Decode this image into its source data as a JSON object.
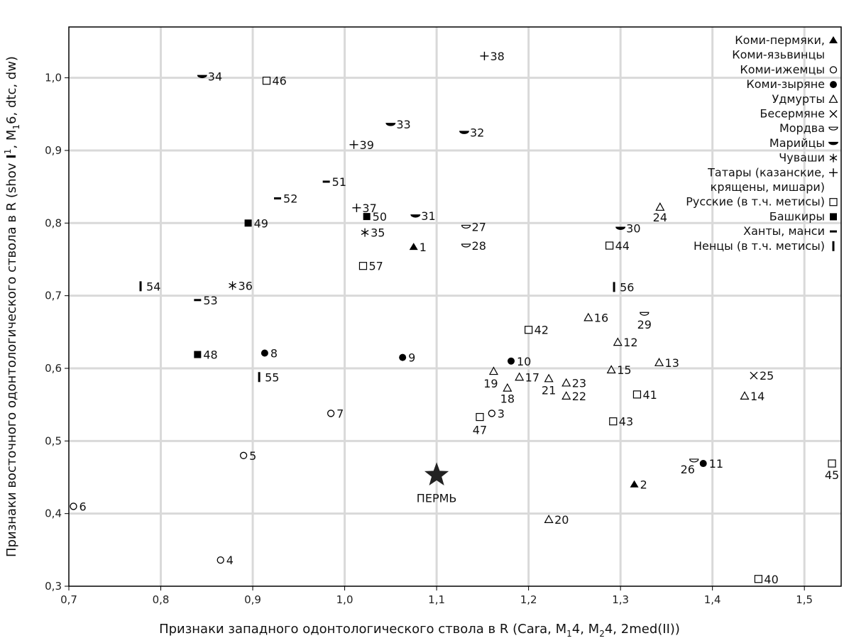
{
  "chart_data": {
    "type": "scatter",
    "xlabel": "Признаки западного одонтологического ствола в R (Cara, M₁4, M₂4, 2med(II))",
    "ylabel": "Признаки восточного одонтологического ствола в R (shov I¹, M₁6, dtc, dw)",
    "xlim": [
      0.7,
      1.54
    ],
    "ylim": [
      0.3,
      1.07
    ],
    "xticks": [
      "0,7",
      "0,8",
      "0,9",
      "1,0",
      "1,1",
      "1,2",
      "1,3",
      "1,4",
      "1,5"
    ],
    "xtick_values": [
      0.7,
      0.8,
      0.9,
      1.0,
      1.1,
      1.2,
      1.3,
      1.4,
      1.5
    ],
    "yticks": [
      "0,3",
      "0,4",
      "0,5",
      "0,6",
      "0,7",
      "0,8",
      "0,9",
      "1,0"
    ],
    "ytick_values": [
      0.3,
      0.4,
      0.5,
      0.6,
      0.7,
      0.8,
      0.9,
      1.0
    ],
    "grid": true,
    "legend_position": "top-right",
    "legend": [
      {
        "label": "Коми-пермяки,",
        "marker": "half-triangle-up"
      },
      {
        "label": "Коми-язьвинцы",
        "marker": "none"
      },
      {
        "label": "Коми-ижемцы",
        "marker": "circle-open"
      },
      {
        "label": "Коми-зыряне",
        "marker": "circle-filled"
      },
      {
        "label": "Удмурты",
        "marker": "triangle-open"
      },
      {
        "label": "Бесермяне",
        "marker": "cross"
      },
      {
        "label": "Мордва",
        "marker": "half-circle-down"
      },
      {
        "label": "Марийцы",
        "marker": "half-ellipse-filled"
      },
      {
        "label": "Чуваши",
        "marker": "asterisk"
      },
      {
        "label": "Татары (казанские,",
        "marker": "plus"
      },
      {
        "label": "крящены, мишари)",
        "marker": "none"
      },
      {
        "label": "Русские (в т.ч. метисы)",
        "marker": "square-open"
      },
      {
        "label": "Башкиры",
        "marker": "square-filled"
      },
      {
        "label": "Ханты, манси",
        "marker": "dash"
      },
      {
        "label": "Ненцы (в т.ч. метисы)",
        "marker": "bar"
      }
    ],
    "points": [
      {
        "label": "1",
        "x": 1.075,
        "y": 0.767,
        "marker": "half-triangle-up"
      },
      {
        "label": "2",
        "x": 1.315,
        "y": 0.44,
        "marker": "half-triangle-up"
      },
      {
        "label": "3",
        "x": 1.16,
        "y": 0.538,
        "marker": "circle-open"
      },
      {
        "label": "4",
        "x": 0.865,
        "y": 0.336,
        "marker": "circle-open"
      },
      {
        "label": "5",
        "x": 0.89,
        "y": 0.48,
        "marker": "circle-open"
      },
      {
        "label": "6",
        "x": 0.705,
        "y": 0.41,
        "marker": "circle-open"
      },
      {
        "label": "7",
        "x": 0.985,
        "y": 0.538,
        "marker": "circle-open"
      },
      {
        "label": "8",
        "x": 0.913,
        "y": 0.621,
        "marker": "circle-filled"
      },
      {
        "label": "9",
        "x": 1.063,
        "y": 0.615,
        "marker": "circle-filled"
      },
      {
        "label": "10",
        "x": 1.181,
        "y": 0.61,
        "marker": "circle-filled"
      },
      {
        "label": "11",
        "x": 1.39,
        "y": 0.469,
        "marker": "circle-filled"
      },
      {
        "label": "12",
        "x": 1.297,
        "y": 0.636,
        "marker": "triangle-open"
      },
      {
        "label": "13",
        "x": 1.342,
        "y": 0.608,
        "marker": "triangle-open"
      },
      {
        "label": "14",
        "x": 1.435,
        "y": 0.562,
        "marker": "triangle-open"
      },
      {
        "label": "15",
        "x": 1.29,
        "y": 0.598,
        "marker": "triangle-open"
      },
      {
        "label": "16",
        "x": 1.265,
        "y": 0.67,
        "marker": "triangle-open"
      },
      {
        "label": "17",
        "x": 1.19,
        "y": 0.588,
        "marker": "triangle-open"
      },
      {
        "label": "18",
        "x": 1.177,
        "y": 0.573,
        "marker": "triangle-open"
      },
      {
        "label": "19",
        "x": 1.162,
        "y": 0.596,
        "marker": "triangle-open"
      },
      {
        "label": "20",
        "x": 1.222,
        "y": 0.392,
        "marker": "triangle-open"
      },
      {
        "label": "21",
        "x": 1.222,
        "y": 0.586,
        "marker": "triangle-open"
      },
      {
        "label": "22",
        "x": 1.241,
        "y": 0.562,
        "marker": "triangle-open"
      },
      {
        "label": "23",
        "x": 1.241,
        "y": 0.58,
        "marker": "triangle-open"
      },
      {
        "label": "24",
        "x": 1.343,
        "y": 0.822,
        "marker": "triangle-open"
      },
      {
        "label": "25",
        "x": 1.445,
        "y": 0.59,
        "marker": "cross"
      },
      {
        "label": "26",
        "x": 1.38,
        "y": 0.473,
        "marker": "half-circle-down"
      },
      {
        "label": "27",
        "x": 1.132,
        "y": 0.795,
        "marker": "half-circle-down"
      },
      {
        "label": "28",
        "x": 1.132,
        "y": 0.769,
        "marker": "half-circle-down"
      },
      {
        "label": "29",
        "x": 1.326,
        "y": 0.675,
        "marker": "half-circle-down"
      },
      {
        "label": "30",
        "x": 1.3,
        "y": 0.793,
        "marker": "half-ellipse-filled"
      },
      {
        "label": "31",
        "x": 1.077,
        "y": 0.81,
        "marker": "half-ellipse-filled"
      },
      {
        "label": "32",
        "x": 1.13,
        "y": 0.925,
        "marker": "half-ellipse-filled"
      },
      {
        "label": "33",
        "x": 1.05,
        "y": 0.936,
        "marker": "half-ellipse-filled"
      },
      {
        "label": "34",
        "x": 0.845,
        "y": 1.002,
        "marker": "half-ellipse-filled"
      },
      {
        "label": "35",
        "x": 1.022,
        "y": 0.787,
        "marker": "asterisk"
      },
      {
        "label": "36",
        "x": 0.878,
        "y": 0.714,
        "marker": "asterisk"
      },
      {
        "label": "37",
        "x": 1.013,
        "y": 0.821,
        "marker": "plus"
      },
      {
        "label": "38",
        "x": 1.152,
        "y": 1.03,
        "marker": "plus"
      },
      {
        "label": "39",
        "x": 1.01,
        "y": 0.908,
        "marker": "plus"
      },
      {
        "label": "40",
        "x": 1.45,
        "y": 0.31,
        "marker": "square-open"
      },
      {
        "label": "41",
        "x": 1.318,
        "y": 0.564,
        "marker": "square-open"
      },
      {
        "label": "42",
        "x": 1.2,
        "y": 0.653,
        "marker": "square-open"
      },
      {
        "label": "43",
        "x": 1.292,
        "y": 0.527,
        "marker": "square-open"
      },
      {
        "label": "44",
        "x": 1.288,
        "y": 0.769,
        "marker": "square-open"
      },
      {
        "label": "45",
        "x": 1.53,
        "y": 0.469,
        "marker": "square-open"
      },
      {
        "label": "46",
        "x": 0.915,
        "y": 0.996,
        "marker": "square-open"
      },
      {
        "label": "47",
        "x": 1.147,
        "y": 0.533,
        "marker": "square-open"
      },
      {
        "label": "48",
        "x": 0.84,
        "y": 0.619,
        "marker": "square-filled"
      },
      {
        "label": "49",
        "x": 0.895,
        "y": 0.8,
        "marker": "square-filled"
      },
      {
        "label": "50",
        "x": 1.024,
        "y": 0.809,
        "marker": "square-filled"
      },
      {
        "label": "51",
        "x": 0.98,
        "y": 0.857,
        "marker": "dash"
      },
      {
        "label": "52",
        "x": 0.927,
        "y": 0.834,
        "marker": "dash"
      },
      {
        "label": "53",
        "x": 0.84,
        "y": 0.694,
        "marker": "dash"
      },
      {
        "label": "54",
        "x": 0.778,
        "y": 0.713,
        "marker": "bar"
      },
      {
        "label": "55",
        "x": 0.907,
        "y": 0.588,
        "marker": "bar"
      },
      {
        "label": "56",
        "x": 1.293,
        "y": 0.712,
        "marker": "bar"
      },
      {
        "label": "57",
        "x": 1.02,
        "y": 0.741,
        "marker": "square-open"
      }
    ],
    "highlight": {
      "label": "ПЕРМЬ",
      "x": 1.1,
      "y": 0.453,
      "marker": "star"
    }
  }
}
